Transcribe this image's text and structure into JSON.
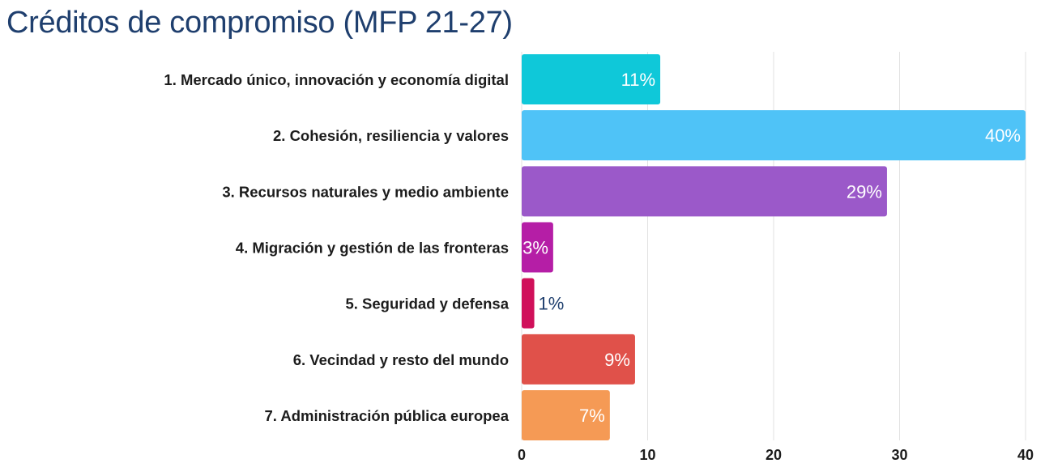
{
  "chart_data": {
    "type": "bar",
    "orientation": "horizontal",
    "title": "Créditos de compromiso (MFP 21-27)",
    "xlabel": "",
    "ylabel": "",
    "categories": [
      "1. Mercado único, innovación y economía digital",
      "2. Cohesión, resiliencia y valores",
      "3. Recursos naturales y medio ambiente",
      "4. Migración y gestión de las fronteras",
      "5. Seguridad y defensa",
      "6. Vecindad y resto del mundo",
      "7. Administración pública europea"
    ],
    "values": [
      11,
      40,
      29,
      2.5,
      1,
      9,
      7
    ],
    "data_labels": [
      "11%",
      "40%",
      "29%",
      "3%",
      "1%",
      "9%",
      "7%"
    ],
    "colors": [
      "#0fc8d9",
      "#4fc3f7",
      "#9b59c9",
      "#b51ea6",
      "#d0105a",
      "#e0514a",
      "#f59a55"
    ],
    "xlim": [
      0,
      40
    ],
    "xticks": [
      0,
      10,
      20,
      30,
      40
    ],
    "grid": true,
    "legend": "none"
  }
}
